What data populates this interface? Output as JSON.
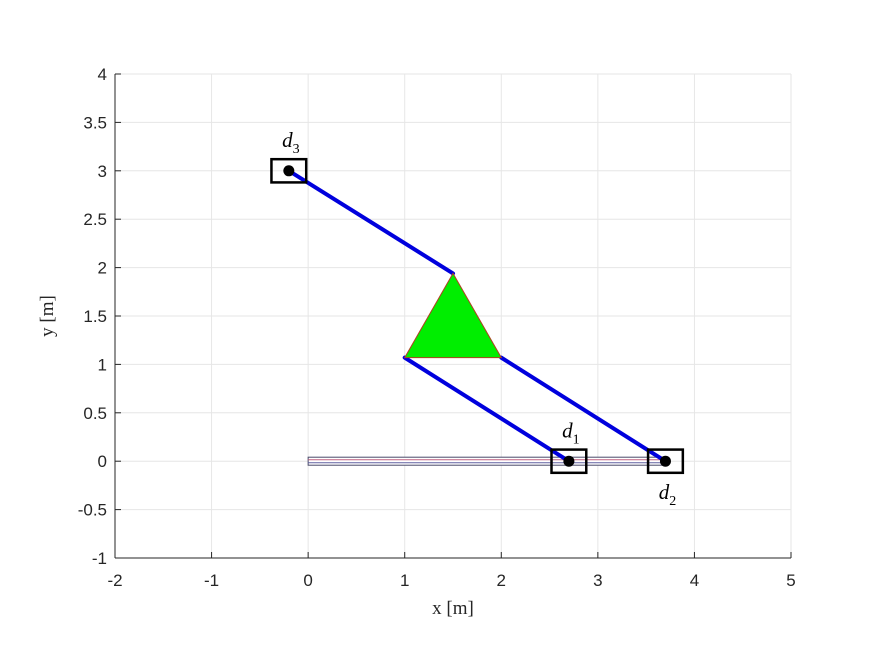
{
  "chart_data": {
    "type": "scatter",
    "title": "",
    "xlabel": "x [m]",
    "ylabel": "y [m]",
    "xlim": [
      -2,
      5
    ],
    "ylim": [
      -1,
      4
    ],
    "x_ticks": [
      -2,
      -1,
      0,
      1,
      2,
      3,
      4,
      5
    ],
    "y_ticks": [
      -1,
      -0.5,
      0,
      0.5,
      1,
      1.5,
      2,
      2.5,
      3,
      3.5,
      4
    ],
    "x_tick_labels": [
      "-2",
      "-1",
      "0",
      "1",
      "2",
      "3",
      "4",
      "5"
    ],
    "y_tick_labels": [
      "-1",
      "-0.5",
      "0",
      "0.5",
      "1",
      "1.5",
      "2",
      "2.5",
      "3",
      "3.5",
      "4"
    ],
    "grid": true,
    "rail": {
      "x": [
        0,
        3.7
      ],
      "y": 0,
      "color": "#4a4a6a"
    },
    "triangle": {
      "vertices": [
        [
          1.0,
          1.07
        ],
        [
          2.0,
          1.07
        ],
        [
          1.5,
          1.94
        ]
      ],
      "fill": "#00ee00",
      "edge": "#b04020"
    },
    "cables": {
      "color": "#0000dd",
      "segments": [
        {
          "from": [
            2.7,
            0
          ],
          "to": [
            1.0,
            1.07
          ]
        },
        {
          "from": [
            3.7,
            0
          ],
          "to": [
            2.0,
            1.07
          ]
        },
        {
          "from": [
            -0.2,
            3.0
          ],
          "to": [
            1.5,
            1.94
          ]
        }
      ]
    },
    "drives": [
      {
        "name": "d",
        "sub": "1",
        "x": 2.7,
        "y": 0,
        "label_pos": "above"
      },
      {
        "name": "d",
        "sub": "2",
        "x": 3.7,
        "y": 0,
        "label_pos": "below"
      },
      {
        "name": "d",
        "sub": "3",
        "x": -0.2,
        "y": 3.0,
        "label_pos": "above"
      }
    ],
    "drive_box": {
      "width": 0.36,
      "height": 0.24
    }
  }
}
